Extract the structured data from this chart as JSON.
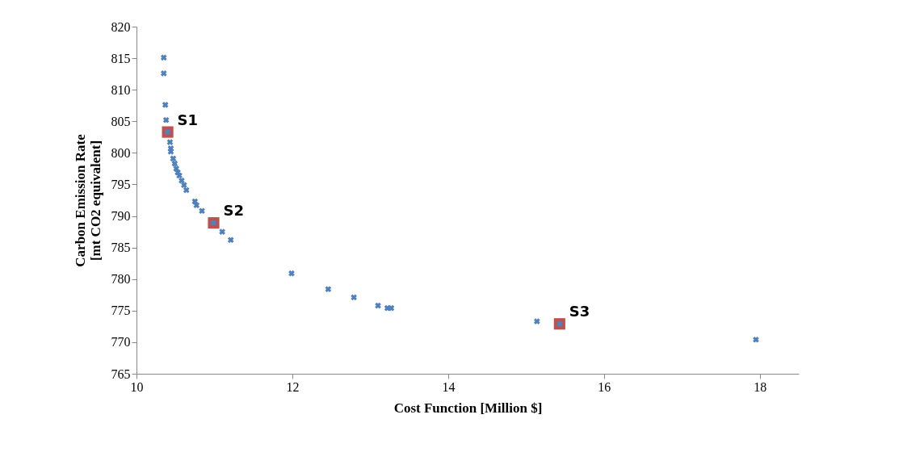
{
  "chart_data": {
    "type": "scatter",
    "xlabel": "Cost Function [Million $]",
    "ylabel": "Carbon Emission Rate\n[mt CO2 equivalent]",
    "xlim": [
      10,
      18.5
    ],
    "xticks": [
      10,
      12,
      14,
      16,
      18
    ],
    "ylim": [
      765,
      820
    ],
    "yticks": [
      765,
      770,
      775,
      780,
      785,
      790,
      795,
      800,
      805,
      810,
      815,
      820
    ],
    "grid": false,
    "series": [
      {
        "color": "#c0504d",
        "marker": "square",
        "x": [
          10.4,
          10.99,
          15.43
        ],
        "values": [
          803.3,
          788.9,
          772.9
        ]
      },
      {
        "color": "#4f81bd",
        "marker": "cross",
        "x": [
          10.35,
          10.35,
          10.37,
          10.38,
          10.4,
          10.43,
          10.44,
          10.44,
          10.47,
          10.49,
          10.51,
          10.53,
          10.55,
          10.58,
          10.61,
          10.64,
          10.75,
          10.77,
          10.84,
          10.99,
          11.1,
          11.21,
          11.99,
          12.46,
          12.79,
          13.1,
          13.22,
          13.27,
          15.14,
          15.43,
          17.95
        ],
        "values": [
          815.1,
          812.6,
          807.6,
          805.2,
          803.3,
          801.7,
          800.7,
          800.2,
          799.1,
          798.3,
          797.5,
          796.9,
          796.4,
          795.6,
          794.9,
          794.1,
          792.3,
          791.7,
          790.8,
          788.9,
          787.5,
          786.2,
          780.9,
          778.4,
          777.1,
          775.8,
          775.4,
          775.4,
          773.3,
          772.9,
          770.4
        ]
      }
    ],
    "annotations": [
      {
        "text": "S1",
        "x": 10.4,
        "y": 803.3
      },
      {
        "text": "S2",
        "x": 10.99,
        "y": 788.9
      },
      {
        "text": "S3",
        "x": 15.43,
        "y": 772.9
      }
    ]
  }
}
